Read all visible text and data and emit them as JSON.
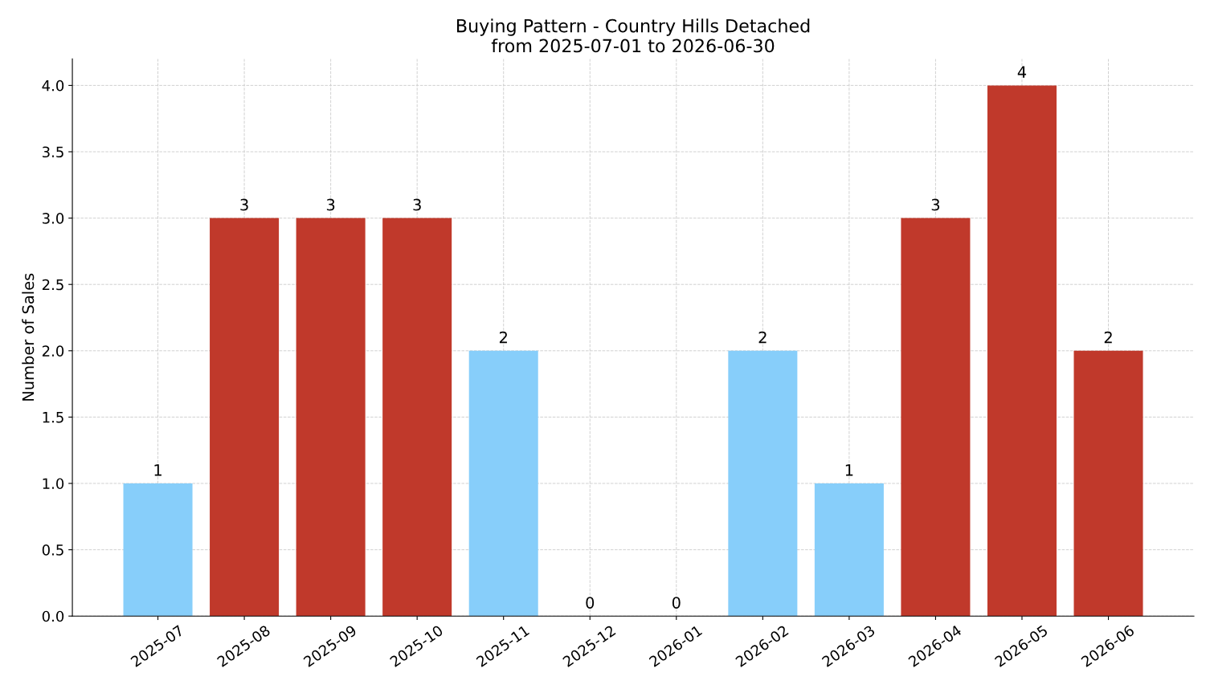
{
  "chart_data": {
    "type": "bar",
    "title": "Buying Pattern - Country Hills Detached\nfrom 2025-07-01 to 2026-06-30",
    "ylabel": "Number of Sales",
    "categories": [
      "2025-07",
      "2025-08",
      "2025-09",
      "2025-10",
      "2025-11",
      "2025-12",
      "2026-01",
      "2026-02",
      "2026-03",
      "2026-04",
      "2026-05",
      "2026-06"
    ],
    "values": [
      1,
      3,
      3,
      3,
      2,
      0,
      0,
      2,
      1,
      3,
      4,
      2
    ],
    "colors": [
      "#87cefa",
      "#c0392b",
      "#c0392b",
      "#c0392b",
      "#87cefa",
      "#87cefa",
      "#87cefa",
      "#87cefa",
      "#87cefa",
      "#c0392b",
      "#c0392b",
      "#c0392b"
    ],
    "ylim": [
      0,
      4.2
    ],
    "yticks": [
      {
        "value": 0,
        "label": "0.0"
      },
      {
        "value": 0.5,
        "label": "0.5"
      },
      {
        "value": 1,
        "label": "1.0"
      },
      {
        "value": 1.5,
        "label": "1.5"
      },
      {
        "value": 2,
        "label": "2.0"
      },
      {
        "value": 2.5,
        "label": "2.5"
      },
      {
        "value": 3,
        "label": "3.0"
      },
      {
        "value": 3.5,
        "label": "3.5"
      },
      {
        "value": 4,
        "label": "4.0"
      }
    ],
    "grid": true,
    "data_labels": true
  }
}
